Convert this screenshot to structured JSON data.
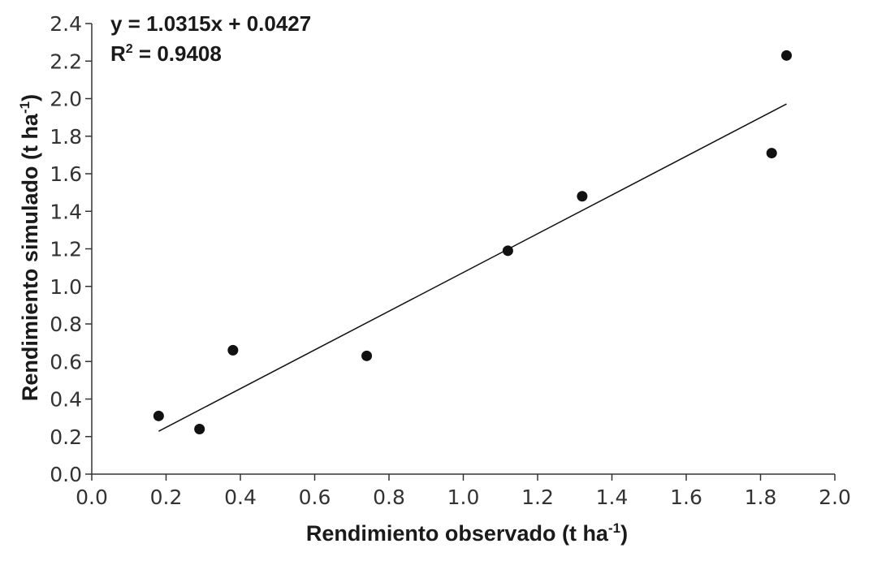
{
  "chart_data": {
    "type": "scatter",
    "xlabel": {
      "main": "Rendimiento observado (t ha",
      "sup": "-1",
      "end": ")"
    },
    "ylabel": {
      "main": "Rendimiento simulado (t ha",
      "sup": "-1",
      "end": ")"
    },
    "xlim": [
      0.0,
      2.0
    ],
    "ylim": [
      0.0,
      2.4
    ],
    "x_ticks": [
      "0.0",
      "0.2",
      "0.4",
      "0.6",
      "0.8",
      "1.0",
      "1.2",
      "1.4",
      "1.6",
      "1.8",
      "2.0"
    ],
    "y_ticks": [
      "0.0",
      "0.2",
      "0.4",
      "0.6",
      "0.8",
      "1.0",
      "1.2",
      "1.4",
      "1.6",
      "1.8",
      "2.0",
      "2.2",
      "2.4"
    ],
    "grid": false,
    "points": [
      {
        "x": 0.18,
        "y": 0.31
      },
      {
        "x": 0.29,
        "y": 0.24
      },
      {
        "x": 0.38,
        "y": 0.66
      },
      {
        "x": 0.74,
        "y": 0.63
      },
      {
        "x": 1.12,
        "y": 1.19
      },
      {
        "x": 1.32,
        "y": 1.48
      },
      {
        "x": 1.83,
        "y": 1.71
      },
      {
        "x": 1.87,
        "y": 2.23
      }
    ],
    "trendline": {
      "slope": 1.0315,
      "intercept": 0.0427,
      "x_range": [
        0.18,
        1.87
      ]
    },
    "annotation": {
      "equation": "y = 1.0315x + 0.0427",
      "r2_prefix": "R",
      "r2_sup": "2",
      "r2_value": " = 0.9408"
    },
    "colors": {
      "points": "#111111",
      "line": "#111111",
      "axis": "#333333"
    }
  }
}
